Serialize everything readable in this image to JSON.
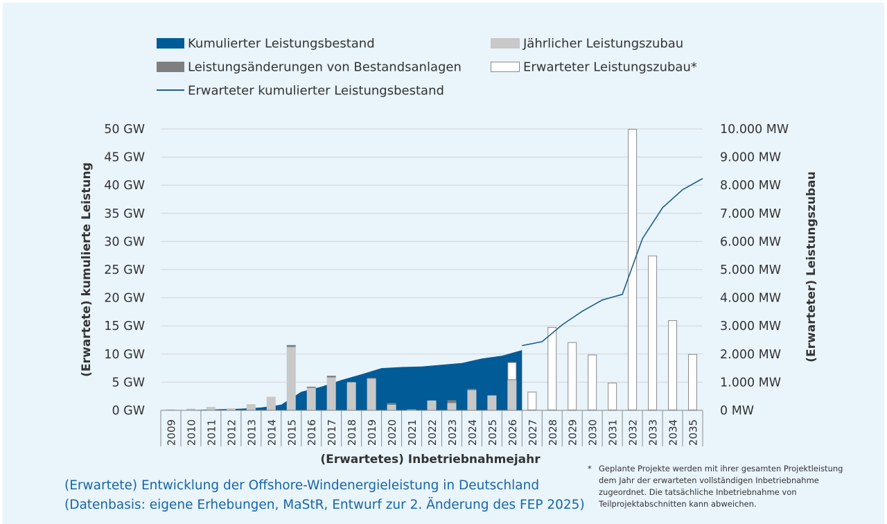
{
  "chart_data": {
    "type": "bar",
    "categories": [
      "2009",
      "2010",
      "2011",
      "2012",
      "2013",
      "2014",
      "2015",
      "2016",
      "2017",
      "2018",
      "2019",
      "2020",
      "2021",
      "2022",
      "2023",
      "2024",
      "2025",
      "2026",
      "2027",
      "2028",
      "2029",
      "2030",
      "2031",
      "2032",
      "2033",
      "2034",
      "2035"
    ],
    "xlabel": "(Erwartetes) Inbetriebnahmejahr",
    "ylabel_left": "(Erwartete) kumulierte Leistung",
    "ylabel_right": "(Erwarteter) Leistungszubau",
    "left_axis": {
      "min": 0,
      "max": 50,
      "unit": "GW",
      "tick_labels": [
        "0 GW",
        "5 GW",
        "10 GW",
        "15 GW",
        "20 GW",
        "25 GW",
        "30 GW",
        "35 GW",
        "40 GW",
        "45 GW",
        "50 GW"
      ]
    },
    "right_axis": {
      "min": 0,
      "max": 10000,
      "unit": "MW",
      "tick_labels": [
        "0 MW",
        "1.000 MW",
        "2.000 MW",
        "3.000 MW",
        "4.000 MW",
        "5.000 MW",
        "6.000 MW",
        "7.000 MW",
        "8.000 MW",
        "9.000 MW",
        "10.000 MW"
      ]
    },
    "grid": true,
    "legend_position": "top",
    "series": [
      {
        "name": "Kumulierter Leistungsbestand",
        "kind": "area",
        "axis": "left",
        "color": "#005b96",
        "values": [
          0.0,
          0.1,
          0.2,
          0.3,
          0.5,
          1.0,
          3.3,
          4.2,
          5.4,
          6.4,
          7.5,
          7.7,
          7.8,
          8.1,
          8.4,
          9.2,
          9.7,
          10.7,
          null,
          null,
          null,
          null,
          null,
          null,
          null,
          null,
          null
        ]
      },
      {
        "name": "Jährlicher Leistungszubau",
        "kind": "bar",
        "axis": "right",
        "color": "#c8c8c8",
        "values": [
          30,
          60,
          120,
          70,
          220,
          480,
          2250,
          800,
          1170,
          1000,
          1130,
          200,
          30,
          350,
          260,
          720,
          530,
          1080,
          0,
          0,
          0,
          0,
          0,
          0,
          0,
          0,
          0
        ]
      },
      {
        "name": "Leistungsänderungen von Bestandsanlagen",
        "kind": "bar",
        "axis": "right",
        "color": "#7f7f7f",
        "values": [
          0,
          0,
          0,
          0,
          0,
          0,
          70,
          40,
          60,
          0,
          20,
          60,
          0,
          0,
          100,
          40,
          0,
          0,
          0,
          0,
          0,
          0,
          0,
          0,
          0,
          0,
          0
        ]
      },
      {
        "name": "Erwarteter Leistungszubau*",
        "kind": "bar",
        "axis": "right",
        "color": "#ffffff",
        "values": [
          0,
          0,
          0,
          0,
          0,
          0,
          0,
          0,
          0,
          0,
          0,
          0,
          0,
          0,
          0,
          0,
          0,
          630,
          660,
          2960,
          2420,
          1980,
          980,
          10000,
          5500,
          3200,
          2000
        ]
      },
      {
        "name": "Erwarteter kumulierter Leistungsbestand",
        "kind": "line",
        "axis": "left",
        "color": "#1f5c8e",
        "values": [
          null,
          null,
          null,
          null,
          null,
          null,
          null,
          null,
          null,
          null,
          null,
          null,
          null,
          null,
          null,
          null,
          null,
          11.5,
          12.2,
          15.2,
          17.6,
          19.6,
          20.6,
          30.5,
          36.0,
          39.2,
          41.2
        ]
      }
    ]
  },
  "caption": {
    "line1": "(Erwartete) Entwicklung der Offshore-Windenergieleistung in Deutschland",
    "line2": "(Datenbasis: eigene Erhebungen, MaStR, Entwurf zur 2. Änderung des FEP 2025)"
  },
  "footnote": {
    "star": "*",
    "text": "Geplante Projekte werden mit ihrer gesamten Projekt­leistung dem Jahr der erwarteten vollständigen Inbe­triebnahme zugeordnet. Die tatsächliche Inbetrieb­nahme von Teilprojektabschnitten kann abweichen."
  }
}
